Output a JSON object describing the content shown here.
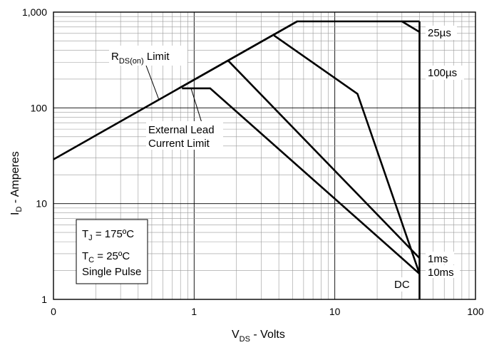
{
  "chart_data": {
    "type": "line",
    "xscale": "log",
    "yscale": "log",
    "xlim": [
      0.1,
      100
    ],
    "ylim": [
      1,
      1000
    ],
    "grid": true,
    "x_tick_labels": [
      "0",
      "1",
      "10",
      "100"
    ],
    "y_tick_labels": [
      "1",
      "10",
      "100",
      "1,000"
    ],
    "xlabel": {
      "main": "V",
      "sub": "DS",
      "rest": " - Volts"
    },
    "ylabel": {
      "main": "I",
      "sub": "D",
      "rest": " - Amperes"
    },
    "series": [
      {
        "name": "RDS(on) Limit",
        "x": [
          0.1,
          5.4
        ],
        "y": [
          29,
          800
        ]
      },
      {
        "name": "External Lead Current Limit",
        "x": [
          0.78,
          5.4,
          40
        ],
        "y": [
          160,
          800,
          800
        ]
      },
      {
        "name": "25µs",
        "x": [
          30,
          40
        ],
        "y": [
          800,
          620
        ]
      },
      {
        "name": "100µs",
        "x": [
          3.7,
          14.5,
          40
        ],
        "y": [
          570,
          140,
          1.85
        ]
      },
      {
        "name": "1ms",
        "x": [
          1.75,
          40
        ],
        "y": [
          310,
          2.7
        ]
      },
      {
        "name": "10ms",
        "x": [
          0.82,
          1.3,
          40
        ],
        "y": [
          160,
          160,
          1.85
        ]
      },
      {
        "name": "DC",
        "x": [
          40,
          40
        ],
        "y": [
          800,
          1
        ]
      }
    ],
    "annotations": {
      "rds_main": "R",
      "rds_sub": "DS(on)",
      "rds_rest": " Limit",
      "ext1": "External Lead",
      "ext2": "Current Limit",
      "t25": "25µs",
      "t100": "100µs",
      "t1ms": "1ms",
      "t10ms": "10ms",
      "dc": "DC"
    },
    "conditions": {
      "tj_main": "T",
      "tj_sub": "J",
      "tj_rest": " = 175ºC",
      "tc_main": "T",
      "tc_sub": "C",
      "tc_rest": " = 25ºC",
      "pulse": "Single Pulse"
    }
  }
}
